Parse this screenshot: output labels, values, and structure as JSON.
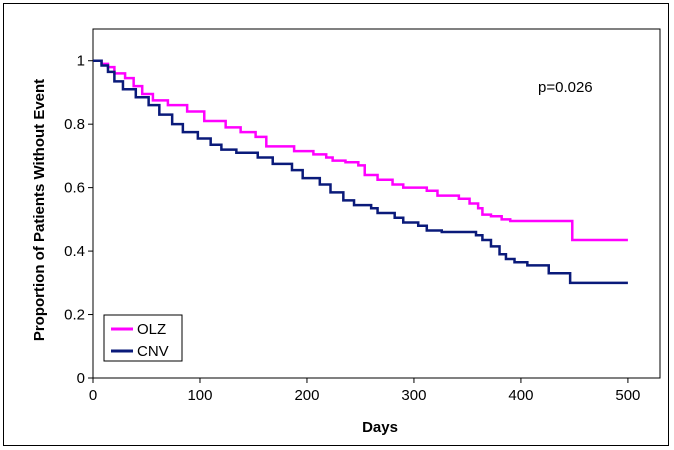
{
  "chart_data": {
    "type": "line",
    "step": true,
    "xlabel": "Days",
    "ylabel": "Proportion of Patients Without Event",
    "xlim": [
      0,
      530
    ],
    "ylim": [
      0,
      1.1
    ],
    "xticks": [
      0,
      100,
      200,
      300,
      400,
      500
    ],
    "yticks": [
      0,
      0.2,
      0.4,
      0.6,
      0.8,
      1
    ],
    "ytick_labels": [
      "0",
      "0.2",
      "0.4",
      "0.6",
      "0.8",
      "1"
    ],
    "annotation": "p=0.026",
    "legend": {
      "placement": "bottom-left"
    },
    "grid": false,
    "series": [
      {
        "name": "OLZ",
        "color": "#ff00ff",
        "points": [
          [
            0,
            1.0
          ],
          [
            8,
            0.99
          ],
          [
            14,
            0.98
          ],
          [
            20,
            0.96
          ],
          [
            30,
            0.945
          ],
          [
            38,
            0.92
          ],
          [
            46,
            0.895
          ],
          [
            56,
            0.875
          ],
          [
            70,
            0.86
          ],
          [
            88,
            0.84
          ],
          [
            104,
            0.81
          ],
          [
            124,
            0.79
          ],
          [
            138,
            0.775
          ],
          [
            152,
            0.76
          ],
          [
            162,
            0.73
          ],
          [
            188,
            0.715
          ],
          [
            206,
            0.705
          ],
          [
            218,
            0.695
          ],
          [
            224,
            0.685
          ],
          [
            236,
            0.68
          ],
          [
            248,
            0.67
          ],
          [
            254,
            0.64
          ],
          [
            266,
            0.625
          ],
          [
            280,
            0.61
          ],
          [
            290,
            0.6
          ],
          [
            312,
            0.59
          ],
          [
            322,
            0.575
          ],
          [
            342,
            0.565
          ],
          [
            352,
            0.55
          ],
          [
            360,
            0.535
          ],
          [
            364,
            0.515
          ],
          [
            372,
            0.51
          ],
          [
            382,
            0.5
          ],
          [
            390,
            0.495
          ],
          [
            408,
            0.495
          ],
          [
            448,
            0.435
          ],
          [
            500,
            0.435
          ]
        ]
      },
      {
        "name": "CNV",
        "color": "#0a1a7a",
        "points": [
          [
            0,
            1.0
          ],
          [
            8,
            0.985
          ],
          [
            14,
            0.965
          ],
          [
            20,
            0.935
          ],
          [
            28,
            0.91
          ],
          [
            40,
            0.885
          ],
          [
            52,
            0.86
          ],
          [
            62,
            0.83
          ],
          [
            74,
            0.8
          ],
          [
            84,
            0.775
          ],
          [
            98,
            0.755
          ],
          [
            110,
            0.735
          ],
          [
            120,
            0.72
          ],
          [
            134,
            0.71
          ],
          [
            154,
            0.695
          ],
          [
            168,
            0.675
          ],
          [
            186,
            0.655
          ],
          [
            196,
            0.63
          ],
          [
            212,
            0.61
          ],
          [
            222,
            0.585
          ],
          [
            234,
            0.56
          ],
          [
            244,
            0.545
          ],
          [
            260,
            0.535
          ],
          [
            266,
            0.52
          ],
          [
            282,
            0.505
          ],
          [
            290,
            0.49
          ],
          [
            304,
            0.48
          ],
          [
            312,
            0.465
          ],
          [
            326,
            0.46
          ],
          [
            358,
            0.45
          ],
          [
            364,
            0.435
          ],
          [
            372,
            0.415
          ],
          [
            380,
            0.39
          ],
          [
            386,
            0.375
          ],
          [
            394,
            0.365
          ],
          [
            406,
            0.355
          ],
          [
            426,
            0.33
          ],
          [
            446,
            0.3
          ],
          [
            500,
            0.3
          ]
        ]
      }
    ]
  }
}
